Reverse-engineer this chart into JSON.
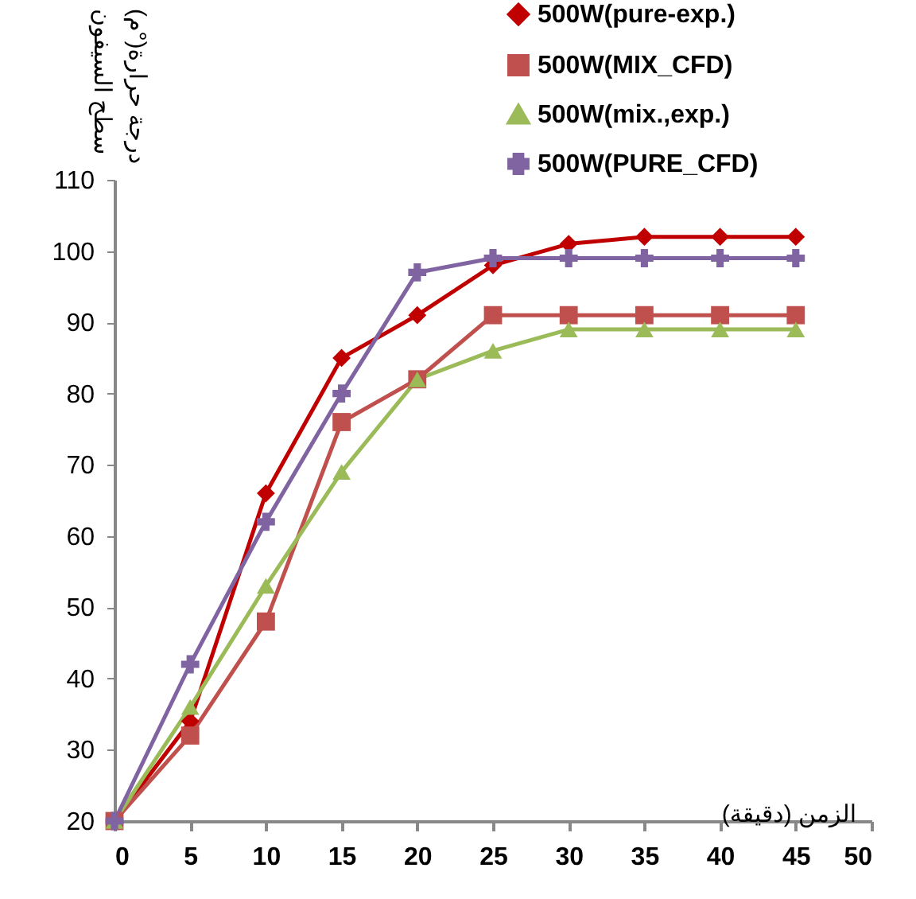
{
  "chart_data": {
    "type": "line",
    "xlabel": "الزمن (دقيقة)",
    "ylabel": "درجة حرارة(°م) سطح السيفون",
    "x": [
      0,
      5,
      10,
      15,
      20,
      25,
      30,
      35,
      40,
      45
    ],
    "series": [
      {
        "name": "500W(pure-exp.)",
        "color": "#c00000",
        "marker": "diamond",
        "values": [
          20,
          34,
          66,
          85,
          91,
          98,
          101,
          102,
          102,
          102
        ]
      },
      {
        "name": "500W(MIX_CFD)",
        "color": "#c0504d",
        "marker": "square",
        "values": [
          20,
          32,
          48,
          76,
          82,
          91,
          91,
          91,
          91,
          91
        ]
      },
      {
        "name": "500W(mix.,exp.)",
        "color": "#9bbb59",
        "marker": "triangle",
        "values": [
          20,
          36,
          53,
          69,
          82,
          86,
          89,
          89,
          89,
          89
        ]
      },
      {
        "name": "500W(PURE_CFD)",
        "color": "#8064a2",
        "marker": "cross",
        "values": [
          20,
          42,
          62,
          80,
          97,
          99,
          99,
          99,
          99,
          99
        ]
      }
    ],
    "xlim": [
      0,
      50
    ],
    "xticks": [
      0,
      5,
      10,
      15,
      20,
      25,
      30,
      35,
      40,
      45,
      50
    ],
    "ylim": [
      20,
      110
    ],
    "yticks": [
      20,
      30,
      40,
      50,
      60,
      70,
      80,
      90,
      100,
      110
    ],
    "grid": false,
    "legend": "top right",
    "line_style": "solid"
  }
}
